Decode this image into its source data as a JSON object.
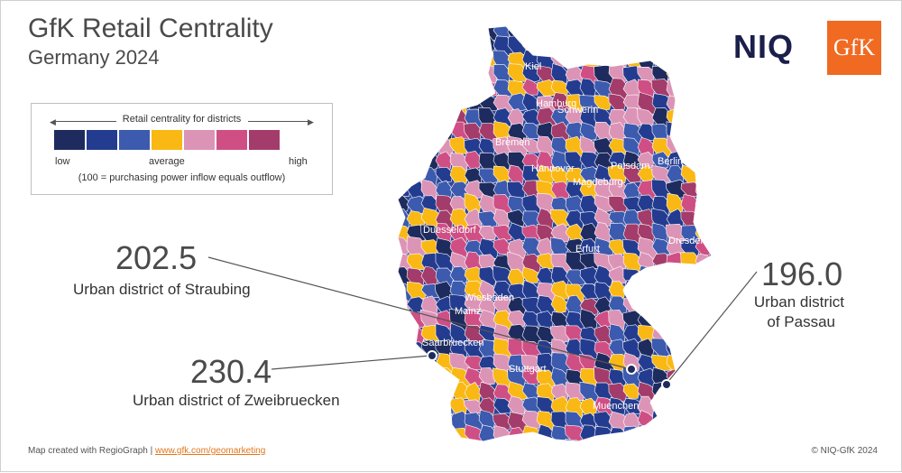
{
  "header": {
    "title": "GfK Retail Centrality",
    "subtitle": "Germany 2024"
  },
  "logos": {
    "niq": "NIQ",
    "gfk": "GfK"
  },
  "legend": {
    "title": "Retail centrality for districts",
    "low": "low",
    "average": "average",
    "high": "high",
    "note": "(100 = purchasing power inflow equals outflow)",
    "colors": [
      "#1e2b5e",
      "#243c8f",
      "#3c5aae",
      "#f9b814",
      "#dc94b6",
      "#cf4f85",
      "#a33c6a"
    ]
  },
  "callouts": [
    {
      "value": "202.5",
      "label": "Urban district of Straubing"
    },
    {
      "value": "196.0",
      "label_line1": "Urban district",
      "label_line2": "of Passau"
    },
    {
      "value": "230.4",
      "label": "Urban district of Zweibruecken"
    }
  ],
  "cities": [
    "Kiel",
    "Hamburg",
    "Schwerin",
    "Bremen",
    "Hannover",
    "Potsdam",
    "Berlin",
    "Magdeburg",
    "Duesseldorf",
    "Erfurt",
    "Dresden",
    "Wiesbaden",
    "Mainz",
    "Saarbruecken",
    "Stuttgart",
    "Muenchen"
  ],
  "footer": {
    "left_text": "Map created with RegioGraph | ",
    "left_link": "www.gfk.com/geomarketing",
    "right": "© NIQ-GfK 2024"
  }
}
